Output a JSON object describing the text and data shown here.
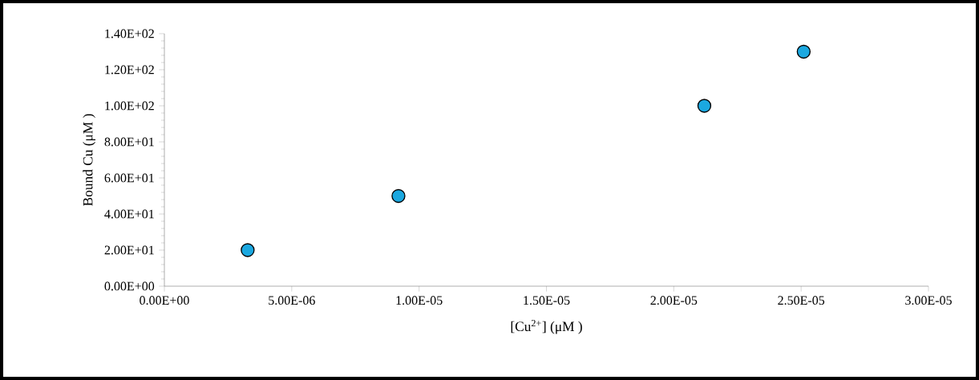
{
  "chart_data": {
    "type": "scatter",
    "xlabel": "[Cu$^{2+}$] (μM )",
    "ylabel": "Bound Cu (μM )",
    "x": [
      3.27e-06,
      9.19e-06,
      2.12e-05,
      2.51e-05
    ],
    "series": [
      {
        "color": "#1ba8e0",
        "values": [
          20,
          50,
          100,
          130
        ]
      }
    ],
    "marker": "circle",
    "xlim": [
      0,
      3e-05
    ],
    "ylim": [
      0,
      140
    ],
    "xticks": [
      {
        "value": 0,
        "label": "0.00E+00"
      },
      {
        "value": 5e-06,
        "label": "5.00E-06"
      },
      {
        "value": 1e-05,
        "label": "1.00E-05"
      },
      {
        "value": 1.5e-05,
        "label": "1.50E-05"
      },
      {
        "value": 2e-05,
        "label": "2.00E-05"
      },
      {
        "value": 2.5e-05,
        "label": "2.50E-05"
      },
      {
        "value": 3e-05,
        "label": "3.00E-05"
      }
    ],
    "yticks": [
      {
        "value": 0,
        "label": "0.00E+00"
      },
      {
        "value": 20,
        "label": "2.00E+01"
      },
      {
        "value": 40,
        "label": "4.00E+01"
      },
      {
        "value": 60,
        "label": "6.00E+01"
      },
      {
        "value": 80,
        "label": "8.00E+01"
      },
      {
        "value": 100,
        "label": "1.00E+02"
      },
      {
        "value": 120,
        "label": "1.20E+02"
      },
      {
        "value": 140,
        "label": "1.40E+02"
      }
    ]
  }
}
